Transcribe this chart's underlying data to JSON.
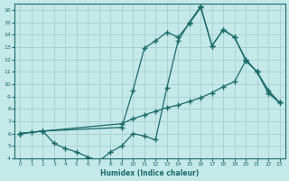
{
  "xlabel": "Humidex (Indice chaleur)",
  "background_color": "#c5e8e8",
  "grid_color": "#a8d0d0",
  "line_color": "#1a6b6b",
  "xlim": [
    -0.5,
    23.5
  ],
  "ylim": [
    4,
    16.5
  ],
  "xticks": [
    0,
    1,
    2,
    3,
    4,
    5,
    6,
    7,
    8,
    9,
    10,
    11,
    12,
    13,
    14,
    15,
    16,
    17,
    18,
    19,
    20,
    21,
    22,
    23
  ],
  "yticks": [
    4,
    5,
    6,
    7,
    8,
    9,
    10,
    11,
    12,
    13,
    14,
    15,
    16
  ],
  "line1_x": [
    0,
    1,
    2,
    3,
    4,
    5,
    6,
    7,
    8,
    9,
    10,
    11,
    12,
    13,
    14,
    15,
    16,
    17,
    18,
    19,
    20,
    21,
    22,
    23
  ],
  "line1_y": [
    6.0,
    6.1,
    6.2,
    5.2,
    4.8,
    4.5,
    4.1,
    3.8,
    4.5,
    5.0,
    6.0,
    5.8,
    5.5,
    9.7,
    13.5,
    15.0,
    16.3,
    13.1,
    14.4,
    13.8,
    12.0,
    11.0,
    9.5,
    8.5
  ],
  "line2_x": [
    0,
    2,
    9,
    10,
    11,
    12,
    13,
    14,
    15,
    16,
    17,
    18,
    19,
    20,
    21,
    22,
    23
  ],
  "line2_y": [
    6.0,
    6.2,
    6.5,
    9.5,
    12.9,
    13.5,
    14.2,
    13.8,
    14.9,
    16.2,
    13.1,
    14.4,
    13.8,
    11.9,
    11.0,
    9.3,
    8.5
  ],
  "line3_x": [
    0,
    2,
    9,
    10,
    11,
    12,
    13,
    14,
    15,
    16,
    17,
    18,
    19,
    20,
    21,
    22,
    23
  ],
  "line3_y": [
    6.0,
    6.2,
    6.8,
    7.2,
    7.5,
    7.8,
    8.1,
    8.3,
    8.6,
    8.9,
    9.3,
    9.8,
    10.2,
    11.9,
    11.0,
    9.3,
    8.5
  ]
}
